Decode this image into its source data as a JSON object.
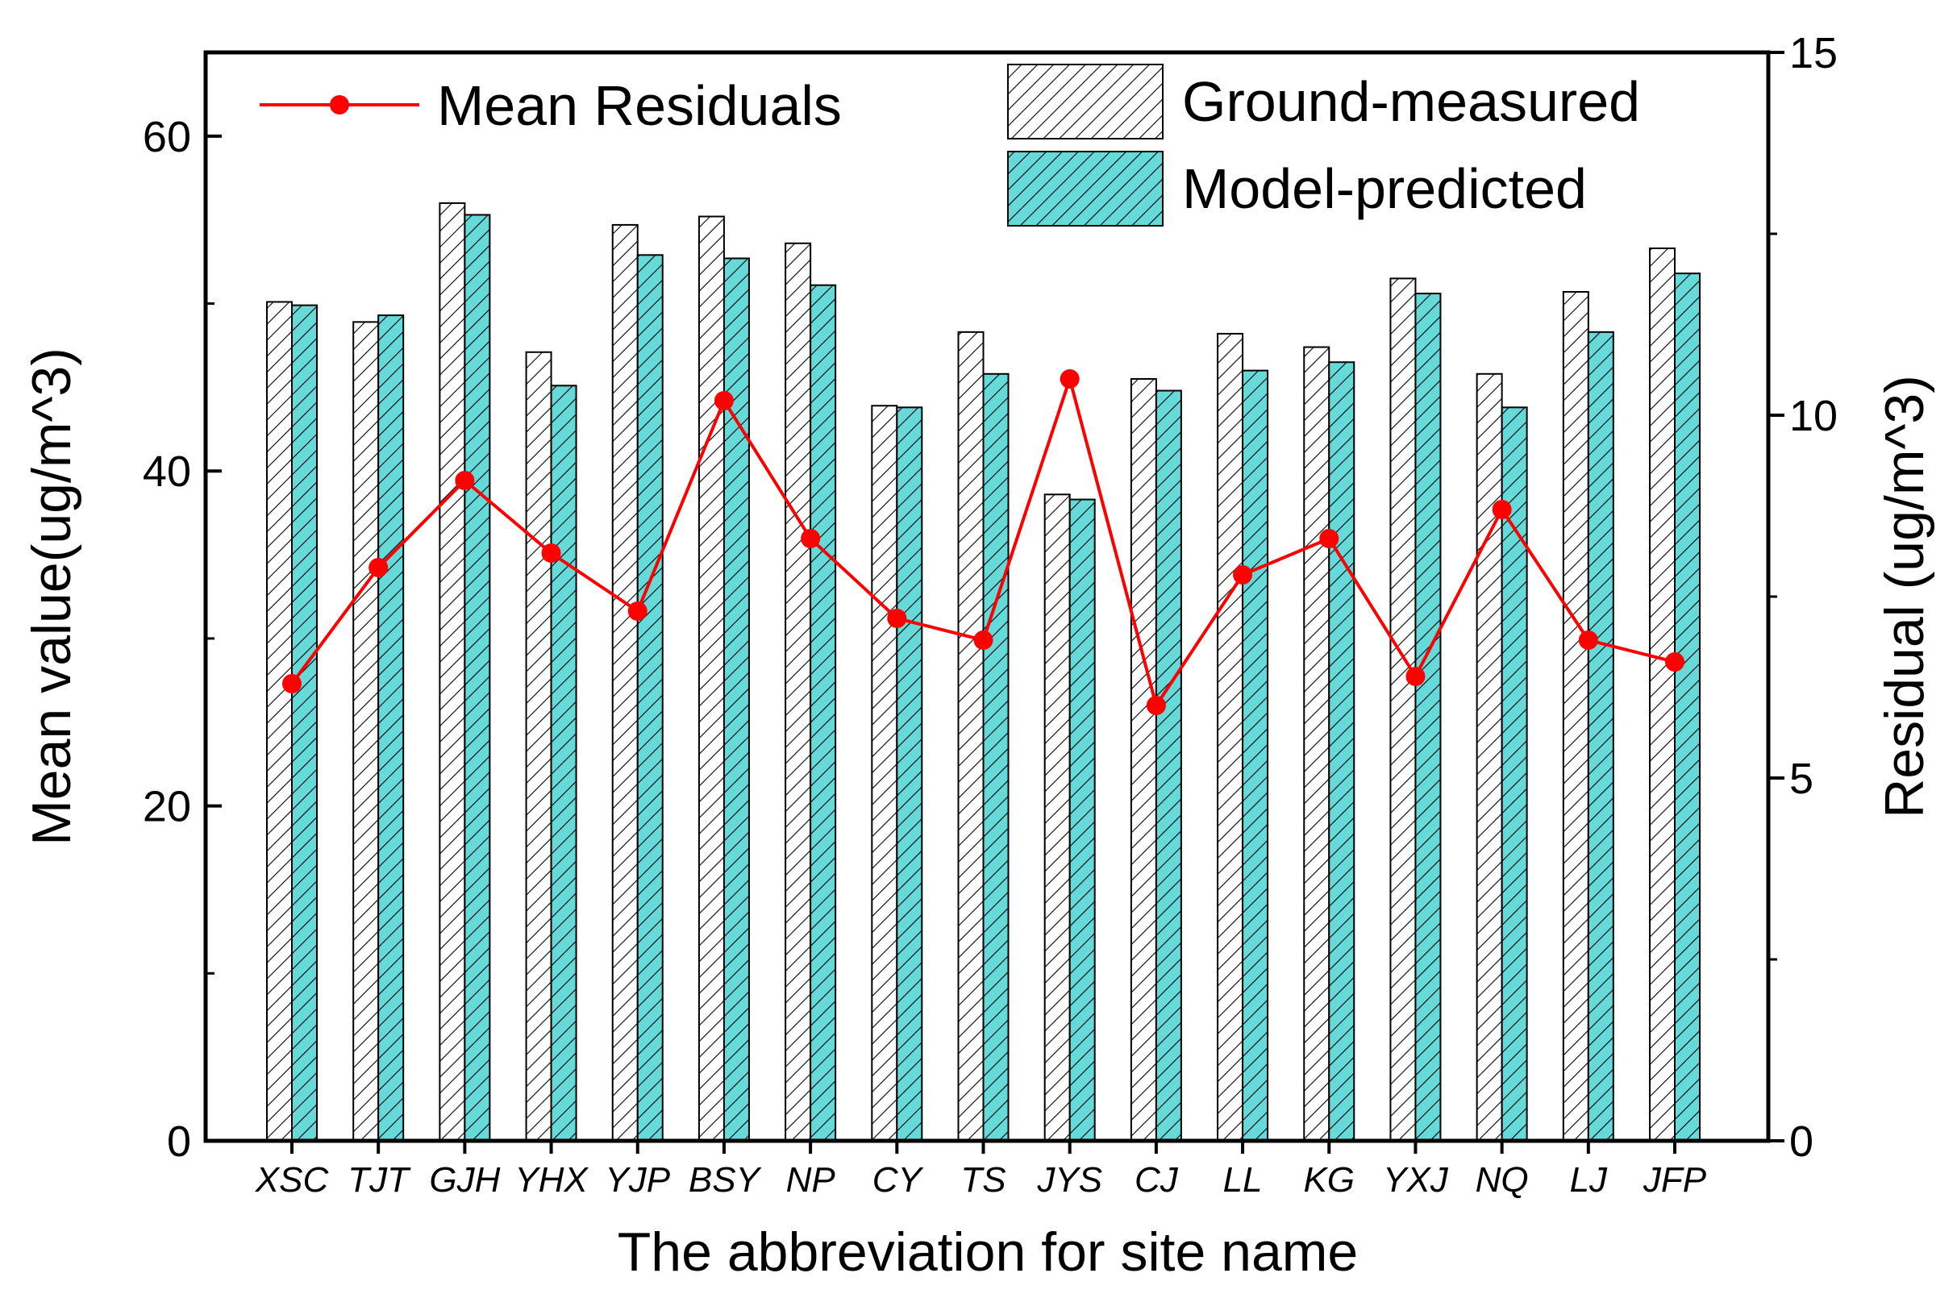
{
  "chart_data": {
    "type": "bar+line",
    "title": "",
    "xlabel": "The abbreviation for site name",
    "ylabel": "Mean value(ug/m^3)",
    "y2label": "Residual (ug/m^3)",
    "ylim": [
      0,
      65
    ],
    "y2lim": [
      0,
      15
    ],
    "yticks": [
      "0",
      "20",
      "40",
      "60"
    ],
    "y2ticks": [
      "0",
      "5",
      "10",
      "15"
    ],
    "categories": [
      "XSC",
      "TJT",
      "GJH",
      "YHX",
      "YJP",
      "BSY",
      "NP",
      "CY",
      "TS",
      "JYS",
      "CJ",
      "LL",
      "KG",
      "YXJ",
      "NQ",
      "LJ",
      "JFP"
    ],
    "series": [
      {
        "name": "Ground-measured",
        "kind": "bar",
        "axis": "left",
        "color": "#ffffff",
        "values": [
          50.1,
          48.9,
          56.0,
          47.1,
          54.7,
          55.2,
          53.6,
          43.9,
          48.3,
          38.6,
          45.5,
          48.2,
          47.4,
          51.5,
          45.8,
          50.7,
          53.3
        ]
      },
      {
        "name": "Model-predicted",
        "kind": "bar",
        "axis": "left",
        "color": "#66d9d9",
        "values": [
          49.9,
          49.3,
          55.3,
          45.1,
          52.9,
          52.7,
          51.1,
          43.8,
          45.8,
          38.3,
          44.8,
          46.0,
          46.5,
          50.6,
          43.8,
          48.3,
          51.8
        ]
      },
      {
        "name": "Mean Residuals",
        "kind": "line",
        "axis": "right",
        "color": "#ff0000",
        "values": [
          6.3,
          7.9,
          9.1,
          8.1,
          7.3,
          10.2,
          8.3,
          7.2,
          6.9,
          10.5,
          6.0,
          7.8,
          8.3,
          6.4,
          8.7,
          6.9,
          6.6
        ]
      }
    ],
    "legend": [
      {
        "label": "Mean Residuals",
        "placement": "top-left"
      },
      {
        "label": "Ground-measured",
        "placement": "top-right"
      },
      {
        "label": "Model-predicted",
        "placement": "top-right"
      }
    ]
  }
}
